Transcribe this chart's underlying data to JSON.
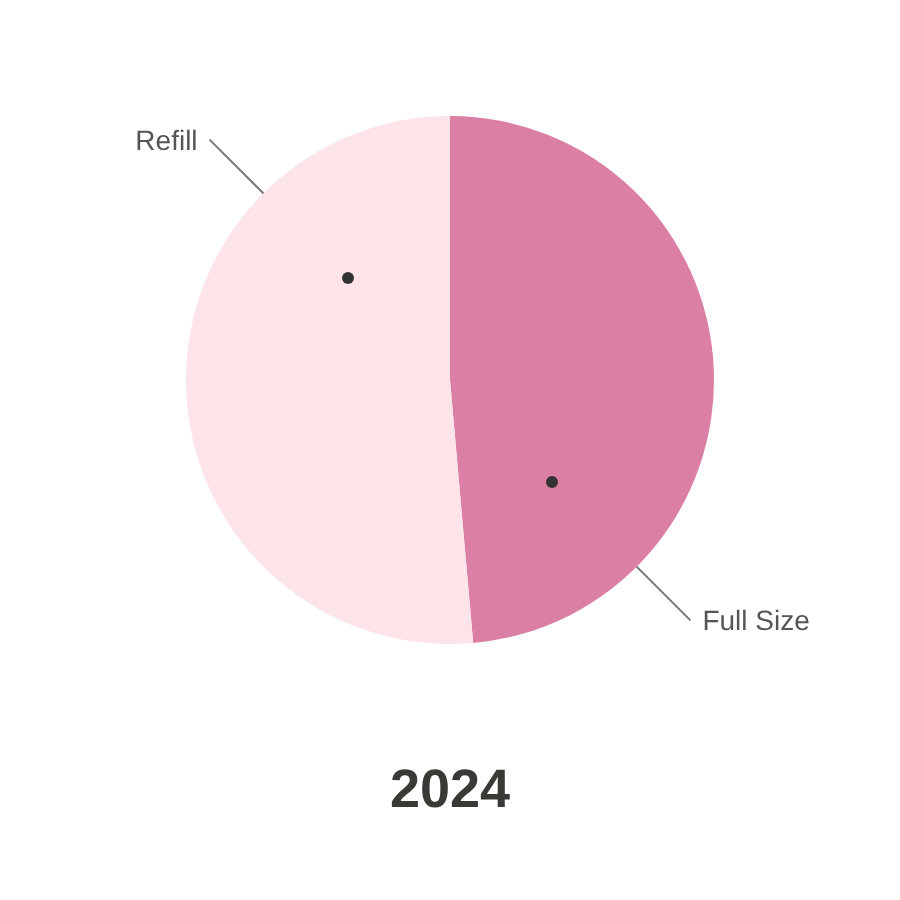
{
  "chart_data": {
    "type": "pie",
    "title": "2024",
    "categories": [
      "Full Size",
      "Refill"
    ],
    "values": [
      48.6,
      51.4
    ],
    "colors": [
      "#db80a4",
      "#fce4e8"
    ]
  }
}
